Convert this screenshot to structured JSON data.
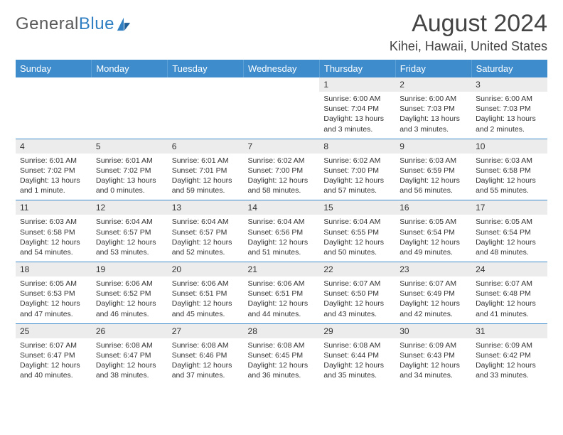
{
  "brand": {
    "textGray": "General",
    "textBlue": "Blue"
  },
  "title": "August 2024",
  "location": "Kihei, Hawaii, United States",
  "colors": {
    "headerBg": "#3e8ccc",
    "headerText": "#ffffff",
    "dayNumBg": "#ececec",
    "accentBorder": "#3e8ccc",
    "bodyText": "#333333",
    "pageBg": "#ffffff"
  },
  "weekdays": [
    "Sunday",
    "Monday",
    "Tuesday",
    "Wednesday",
    "Thursday",
    "Friday",
    "Saturday"
  ],
  "weeks": [
    [
      null,
      null,
      null,
      null,
      {
        "n": "1",
        "sr": "6:00 AM",
        "ss": "7:04 PM",
        "dl": "13 hours and 3 minutes."
      },
      {
        "n": "2",
        "sr": "6:00 AM",
        "ss": "7:03 PM",
        "dl": "13 hours and 3 minutes."
      },
      {
        "n": "3",
        "sr": "6:00 AM",
        "ss": "7:03 PM",
        "dl": "13 hours and 2 minutes."
      }
    ],
    [
      {
        "n": "4",
        "sr": "6:01 AM",
        "ss": "7:02 PM",
        "dl": "13 hours and 1 minute."
      },
      {
        "n": "5",
        "sr": "6:01 AM",
        "ss": "7:02 PM",
        "dl": "13 hours and 0 minutes."
      },
      {
        "n": "6",
        "sr": "6:01 AM",
        "ss": "7:01 PM",
        "dl": "12 hours and 59 minutes."
      },
      {
        "n": "7",
        "sr": "6:02 AM",
        "ss": "7:00 PM",
        "dl": "12 hours and 58 minutes."
      },
      {
        "n": "8",
        "sr": "6:02 AM",
        "ss": "7:00 PM",
        "dl": "12 hours and 57 minutes."
      },
      {
        "n": "9",
        "sr": "6:03 AM",
        "ss": "6:59 PM",
        "dl": "12 hours and 56 minutes."
      },
      {
        "n": "10",
        "sr": "6:03 AM",
        "ss": "6:58 PM",
        "dl": "12 hours and 55 minutes."
      }
    ],
    [
      {
        "n": "11",
        "sr": "6:03 AM",
        "ss": "6:58 PM",
        "dl": "12 hours and 54 minutes."
      },
      {
        "n": "12",
        "sr": "6:04 AM",
        "ss": "6:57 PM",
        "dl": "12 hours and 53 minutes."
      },
      {
        "n": "13",
        "sr": "6:04 AM",
        "ss": "6:57 PM",
        "dl": "12 hours and 52 minutes."
      },
      {
        "n": "14",
        "sr": "6:04 AM",
        "ss": "6:56 PM",
        "dl": "12 hours and 51 minutes."
      },
      {
        "n": "15",
        "sr": "6:04 AM",
        "ss": "6:55 PM",
        "dl": "12 hours and 50 minutes."
      },
      {
        "n": "16",
        "sr": "6:05 AM",
        "ss": "6:54 PM",
        "dl": "12 hours and 49 minutes."
      },
      {
        "n": "17",
        "sr": "6:05 AM",
        "ss": "6:54 PM",
        "dl": "12 hours and 48 minutes."
      }
    ],
    [
      {
        "n": "18",
        "sr": "6:05 AM",
        "ss": "6:53 PM",
        "dl": "12 hours and 47 minutes."
      },
      {
        "n": "19",
        "sr": "6:06 AM",
        "ss": "6:52 PM",
        "dl": "12 hours and 46 minutes."
      },
      {
        "n": "20",
        "sr": "6:06 AM",
        "ss": "6:51 PM",
        "dl": "12 hours and 45 minutes."
      },
      {
        "n": "21",
        "sr": "6:06 AM",
        "ss": "6:51 PM",
        "dl": "12 hours and 44 minutes."
      },
      {
        "n": "22",
        "sr": "6:07 AM",
        "ss": "6:50 PM",
        "dl": "12 hours and 43 minutes."
      },
      {
        "n": "23",
        "sr": "6:07 AM",
        "ss": "6:49 PM",
        "dl": "12 hours and 42 minutes."
      },
      {
        "n": "24",
        "sr": "6:07 AM",
        "ss": "6:48 PM",
        "dl": "12 hours and 41 minutes."
      }
    ],
    [
      {
        "n": "25",
        "sr": "6:07 AM",
        "ss": "6:47 PM",
        "dl": "12 hours and 40 minutes."
      },
      {
        "n": "26",
        "sr": "6:08 AM",
        "ss": "6:47 PM",
        "dl": "12 hours and 38 minutes."
      },
      {
        "n": "27",
        "sr": "6:08 AM",
        "ss": "6:46 PM",
        "dl": "12 hours and 37 minutes."
      },
      {
        "n": "28",
        "sr": "6:08 AM",
        "ss": "6:45 PM",
        "dl": "12 hours and 36 minutes."
      },
      {
        "n": "29",
        "sr": "6:08 AM",
        "ss": "6:44 PM",
        "dl": "12 hours and 35 minutes."
      },
      {
        "n": "30",
        "sr": "6:09 AM",
        "ss": "6:43 PM",
        "dl": "12 hours and 34 minutes."
      },
      {
        "n": "31",
        "sr": "6:09 AM",
        "ss": "6:42 PM",
        "dl": "12 hours and 33 minutes."
      }
    ]
  ],
  "labels": {
    "sunrise": "Sunrise:",
    "sunset": "Sunset:",
    "daylight": "Daylight:"
  }
}
